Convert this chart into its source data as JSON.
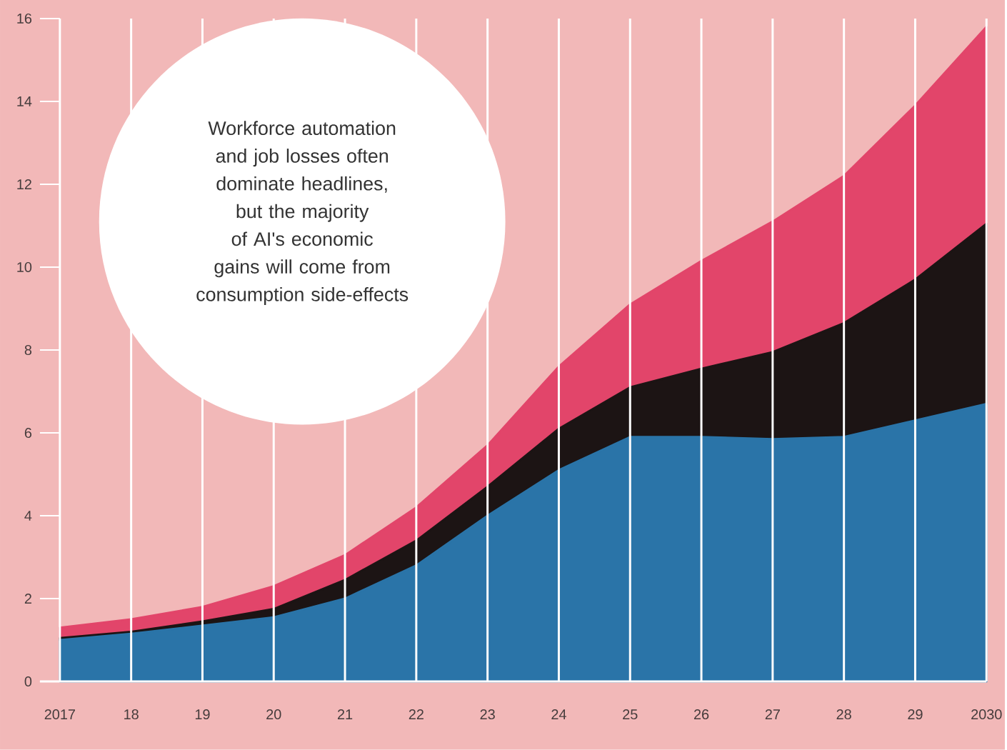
{
  "chart_data": {
    "type": "area",
    "stacked": true,
    "x": [
      2017,
      2018,
      2019,
      2020,
      2021,
      2022,
      2023,
      2024,
      2025,
      2026,
      2027,
      2028,
      2029,
      2030
    ],
    "series": [
      {
        "color": "#2a74a8",
        "values": [
          1.0,
          1.15,
          1.35,
          1.55,
          2.0,
          2.8,
          4.0,
          5.1,
          5.9,
          5.9,
          5.85,
          5.9,
          6.3,
          6.7
        ]
      },
      {
        "color": "#1c1414",
        "values": [
          0.05,
          0.05,
          0.1,
          0.2,
          0.45,
          0.6,
          0.7,
          1.0,
          1.2,
          1.65,
          2.1,
          2.75,
          3.4,
          4.35
        ]
      },
      {
        "color": "#e2456a",
        "values": [
          0.25,
          0.3,
          0.35,
          0.55,
          0.6,
          0.8,
          1.0,
          1.5,
          2.0,
          2.6,
          3.15,
          3.55,
          4.2,
          4.75
        ]
      }
    ],
    "xlim": [
      2017,
      2030
    ],
    "xticks": [
      {
        "value": 2017,
        "label": "2017"
      },
      {
        "value": 2018,
        "label": "18"
      },
      {
        "value": 2019,
        "label": "19"
      },
      {
        "value": 2020,
        "label": "20"
      },
      {
        "value": 2021,
        "label": "21"
      },
      {
        "value": 2022,
        "label": "22"
      },
      {
        "value": 2023,
        "label": "23"
      },
      {
        "value": 2024,
        "label": "24"
      },
      {
        "value": 2025,
        "label": "25"
      },
      {
        "value": 2026,
        "label": "26"
      },
      {
        "value": 2027,
        "label": "27"
      },
      {
        "value": 2028,
        "label": "28"
      },
      {
        "value": 2029,
        "label": "29"
      },
      {
        "value": 2030,
        "label": "2030"
      }
    ],
    "ylim": [
      0,
      16
    ],
    "yticks": [
      0,
      2,
      4,
      6,
      8,
      10,
      12,
      14,
      16
    ],
    "grid": "x",
    "annotations": [
      "Workforce automation and job losses often dominate headlines, but the majority of AI's economic gains will come from consumption side-effects"
    ]
  }
}
